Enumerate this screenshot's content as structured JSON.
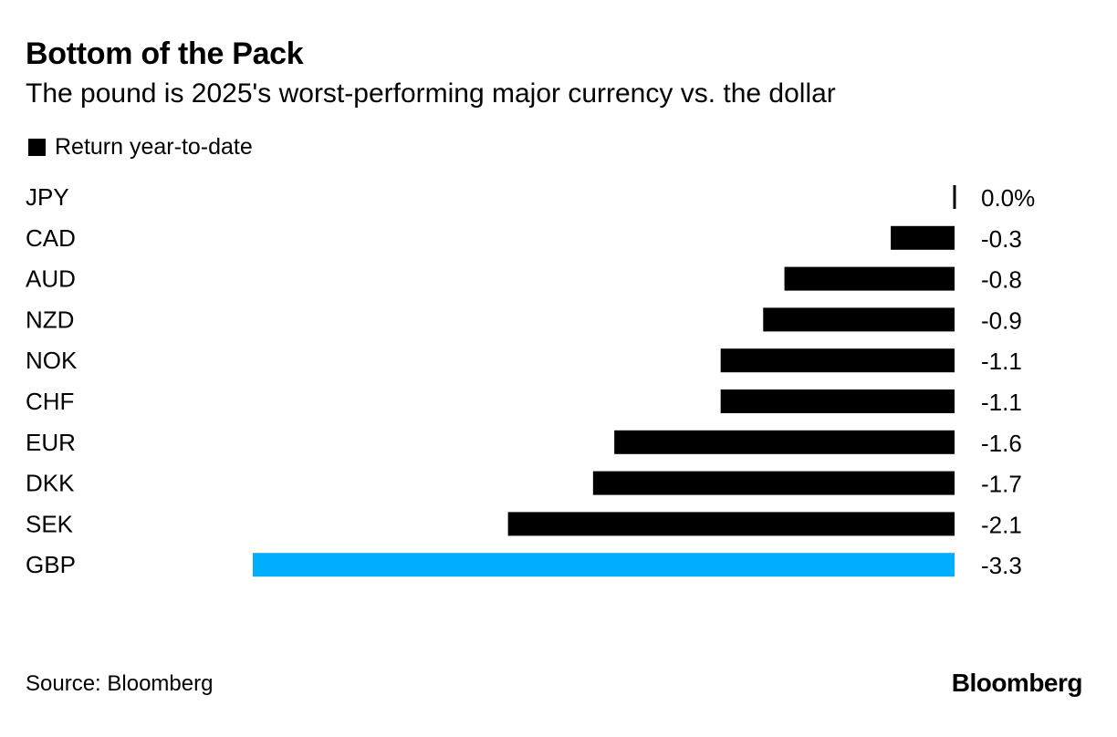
{
  "chart_data": {
    "type": "bar",
    "orientation": "horizontal",
    "title": "Bottom of the Pack",
    "subtitle": "The pound is 2025's worst-performing major currency vs. the dollar",
    "legend": [
      {
        "name": "Return year-to-date",
        "color": "#000000"
      }
    ],
    "legend_position": "top-left",
    "categories": [
      "JPY",
      "CAD",
      "AUD",
      "NZD",
      "NOK",
      "CHF",
      "EUR",
      "DKK",
      "SEK",
      "GBP"
    ],
    "series": [
      {
        "name": "Return year-to-date",
        "values": [
          0.0,
          -0.3,
          -0.8,
          -0.9,
          -1.1,
          -1.1,
          -1.6,
          -1.7,
          -2.1,
          -3.3
        ]
      }
    ],
    "value_labels": [
      "0.0%",
      "-0.3",
      "-0.8",
      "-0.9",
      "-1.1",
      "-1.1",
      "-1.6",
      "-1.7",
      "-2.1",
      "-3.3"
    ],
    "colors": [
      "#000000",
      "#000000",
      "#000000",
      "#000000",
      "#000000",
      "#000000",
      "#000000",
      "#000000",
      "#000000",
      "#00aeff"
    ],
    "xlim": [
      -3.3,
      0
    ],
    "grid": false
  },
  "footer": {
    "source": "Source: Bloomberg",
    "brand": "Bloomberg"
  }
}
